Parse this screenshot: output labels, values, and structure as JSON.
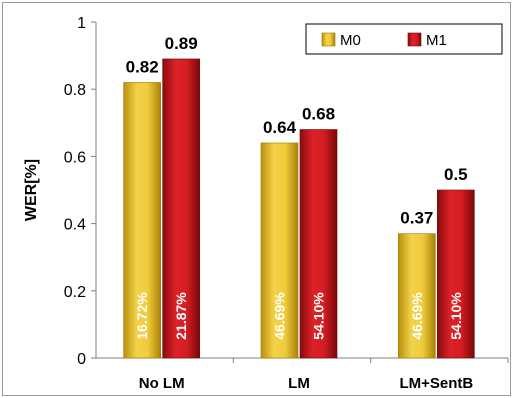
{
  "chart_data": {
    "type": "bar",
    "categories": [
      "No LM",
      "LM",
      "LM+SentB"
    ],
    "series": [
      {
        "name": "M0",
        "values": [
          0.82,
          0.64,
          0.37
        ],
        "inner_labels": [
          "16.72%",
          "46.69%",
          "46.69%"
        ],
        "color": "#e8c235"
      },
      {
        "name": "M1",
        "values": [
          0.89,
          0.68,
          0.5
        ],
        "inner_labels": [
          "21.87%",
          "54.10%",
          "54.10%"
        ],
        "color": "#c8161b"
      }
    ],
    "value_labels": {
      "M0": [
        "0.82",
        "0.64",
        "0.37"
      ],
      "M1": [
        "0.89",
        "0.68",
        "0.5"
      ]
    },
    "xlabel": "",
    "ylabel": "WER[%]",
    "ylim": [
      0,
      1
    ],
    "yticks": [
      "0",
      "0.2",
      "0.4",
      "0.6",
      "0.8",
      "1"
    ],
    "legend_position": "top-right",
    "grid": false
  }
}
